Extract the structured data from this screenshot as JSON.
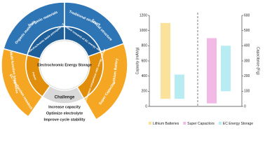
{
  "diagram": {
    "center": "Electrochromic Energy Storage",
    "sectors": [
      {
        "title": "Electrochromic basic principles",
        "items": [
          "Organic materials",
          "Inorganic materials"
        ]
      },
      {
        "title": "The latest research of EC energy storage",
        "items": [
          "Traditional structure",
          "Special structure"
        ]
      },
      {
        "title": "Performance comparison with energy storage",
        "items": [
          "Lithium Battery",
          "Super Capacitor"
        ]
      },
      {
        "title": "Challenge",
        "items": [
          "Increase capacity",
          "Optimize electrolyte",
          "Improve cycle stability"
        ]
      },
      {
        "title": "Future",
        "items": [
          "EC mechanism research",
          "Multi-function integration"
        ]
      }
    ]
  },
  "chart_data": {
    "type": "bar",
    "categories": [
      null,
      null
    ],
    "category_axes": [
      "y",
      "y2"
    ],
    "series": [
      {
        "name": "Lithium Batteries",
        "color": "#fbe29a",
        "values": [
          [
            100,
            1100
          ],
          null
        ]
      },
      {
        "name": "Super Capacitors",
        "color": "#f2b8e6",
        "values": [
          null,
          [
            20,
            450
          ]
        ]
      },
      {
        "name": "EC Energy Storage",
        "color": "#b7ecf2",
        "values": [
          [
            100,
            420
          ],
          [
            100,
            400
          ]
        ]
      }
    ],
    "ylabel": "Capacity (mAh/g)",
    "y2label": "Capacitance (F/g)",
    "ylim": [
      0,
      1200
    ],
    "yticks": [
      0,
      200,
      400,
      600,
      800,
      1000,
      1200
    ],
    "y2lim": [
      0,
      600
    ],
    "y2ticks": [
      0,
      100,
      200,
      300,
      400,
      500,
      600
    ],
    "legend": "bottom"
  }
}
